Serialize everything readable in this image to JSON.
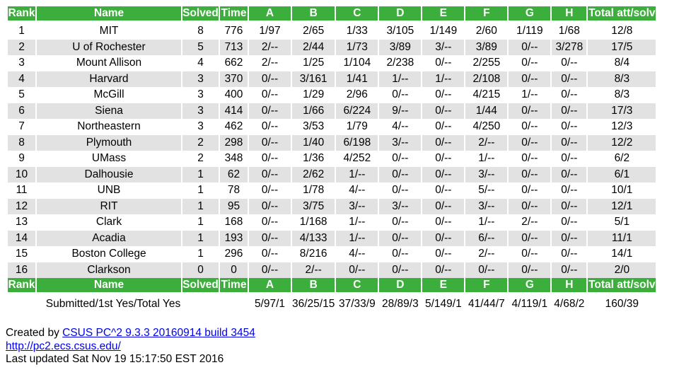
{
  "header": {
    "rank": "Rank",
    "name": "Name",
    "solved": "Solved",
    "time": "Time",
    "problems": [
      "A",
      "B",
      "C",
      "D",
      "E",
      "F",
      "G",
      "H"
    ],
    "total": "Total att/solv"
  },
  "rows": [
    {
      "rank": "1",
      "name": "MIT",
      "solved": "8",
      "time": "776",
      "probs": [
        "1/97",
        "2/65",
        "1/33",
        "3/105",
        "1/149",
        "2/60",
        "1/119",
        "1/68"
      ],
      "total": "12/8"
    },
    {
      "rank": "2",
      "name": "U of Rochester",
      "solved": "5",
      "time": "713",
      "probs": [
        "2/--",
        "2/44",
        "1/73",
        "3/89",
        "3/--",
        "3/89",
        "0/--",
        "3/278"
      ],
      "total": "17/5"
    },
    {
      "rank": "3",
      "name": "Mount Allison",
      "solved": "4",
      "time": "662",
      "probs": [
        "2/--",
        "1/25",
        "1/104",
        "2/238",
        "0/--",
        "2/255",
        "0/--",
        "0/--"
      ],
      "total": "8/4"
    },
    {
      "rank": "4",
      "name": "Harvard",
      "solved": "3",
      "time": "370",
      "probs": [
        "0/--",
        "3/161",
        "1/41",
        "1/--",
        "1/--",
        "2/108",
        "0/--",
        "0/--"
      ],
      "total": "8/3"
    },
    {
      "rank": "5",
      "name": "McGill",
      "solved": "3",
      "time": "400",
      "probs": [
        "0/--",
        "1/29",
        "2/96",
        "0/--",
        "0/--",
        "4/215",
        "1/--",
        "0/--"
      ],
      "total": "8/3"
    },
    {
      "rank": "6",
      "name": "Siena",
      "solved": "3",
      "time": "414",
      "probs": [
        "0/--",
        "1/66",
        "6/224",
        "9/--",
        "0/--",
        "1/44",
        "0/--",
        "0/--"
      ],
      "total": "17/3"
    },
    {
      "rank": "7",
      "name": "Northeastern",
      "solved": "3",
      "time": "462",
      "probs": [
        "0/--",
        "3/53",
        "1/79",
        "4/--",
        "0/--",
        "4/250",
        "0/--",
        "0/--"
      ],
      "total": "12/3"
    },
    {
      "rank": "8",
      "name": "Plymouth",
      "solved": "2",
      "time": "298",
      "probs": [
        "0/--",
        "1/40",
        "6/198",
        "3/--",
        "0/--",
        "2/--",
        "0/--",
        "0/--"
      ],
      "total": "12/2"
    },
    {
      "rank": "9",
      "name": "UMass",
      "solved": "2",
      "time": "348",
      "probs": [
        "0/--",
        "1/36",
        "4/252",
        "0/--",
        "0/--",
        "1/--",
        "0/--",
        "0/--"
      ],
      "total": "6/2"
    },
    {
      "rank": "10",
      "name": "Dalhousie",
      "solved": "1",
      "time": "62",
      "probs": [
        "0/--",
        "2/62",
        "1/--",
        "0/--",
        "0/--",
        "3/--",
        "0/--",
        "0/--"
      ],
      "total": "6/1"
    },
    {
      "rank": "11",
      "name": "UNB",
      "solved": "1",
      "time": "78",
      "probs": [
        "0/--",
        "1/78",
        "4/--",
        "0/--",
        "0/--",
        "5/--",
        "0/--",
        "0/--"
      ],
      "total": "10/1"
    },
    {
      "rank": "12",
      "name": "RIT",
      "solved": "1",
      "time": "95",
      "probs": [
        "0/--",
        "3/75",
        "3/--",
        "3/--",
        "0/--",
        "3/--",
        "0/--",
        "0/--"
      ],
      "total": "12/1"
    },
    {
      "rank": "13",
      "name": "Clark",
      "solved": "1",
      "time": "168",
      "probs": [
        "0/--",
        "1/168",
        "1/--",
        "0/--",
        "0/--",
        "1/--",
        "2/--",
        "0/--"
      ],
      "total": "5/1"
    },
    {
      "rank": "14",
      "name": "Acadia",
      "solved": "1",
      "time": "193",
      "probs": [
        "0/--",
        "4/133",
        "1/--",
        "0/--",
        "0/--",
        "6/--",
        "0/--",
        "0/--"
      ],
      "total": "11/1"
    },
    {
      "rank": "15",
      "name": "Boston College",
      "solved": "1",
      "time": "296",
      "probs": [
        "0/--",
        "8/216",
        "4/--",
        "0/--",
        "0/--",
        "2/--",
        "0/--",
        "0/--"
      ],
      "total": "14/1"
    },
    {
      "rank": "16",
      "name": "Clarkson",
      "solved": "0",
      "time": "0",
      "probs": [
        "0/--",
        "2/--",
        "0/--",
        "0/--",
        "0/--",
        "0/--",
        "0/--",
        "0/--"
      ],
      "total": "2/0"
    }
  ],
  "summary": {
    "label": "Submitted/1st Yes/Total Yes",
    "probs": [
      "5/97/1",
      "36/25/15",
      "37/33/9",
      "28/89/3",
      "5/149/1",
      "41/44/7",
      "4/119/1",
      "4/68/2"
    ],
    "total": "160/39"
  },
  "footer": {
    "created_prefix": "Created by ",
    "created_link": "CSUS PC^2 9.3.3 20160914 build 3454",
    "site_link": "http://pc2.ecs.csus.edu/",
    "updated": "Last updated Sat Nov 19 15:17:50 EST 2016"
  },
  "colors": {
    "header_bg": "#3cae3c",
    "header_text": "#ffffff",
    "stripe": "#e2e2e2",
    "link": "#0000ee"
  }
}
